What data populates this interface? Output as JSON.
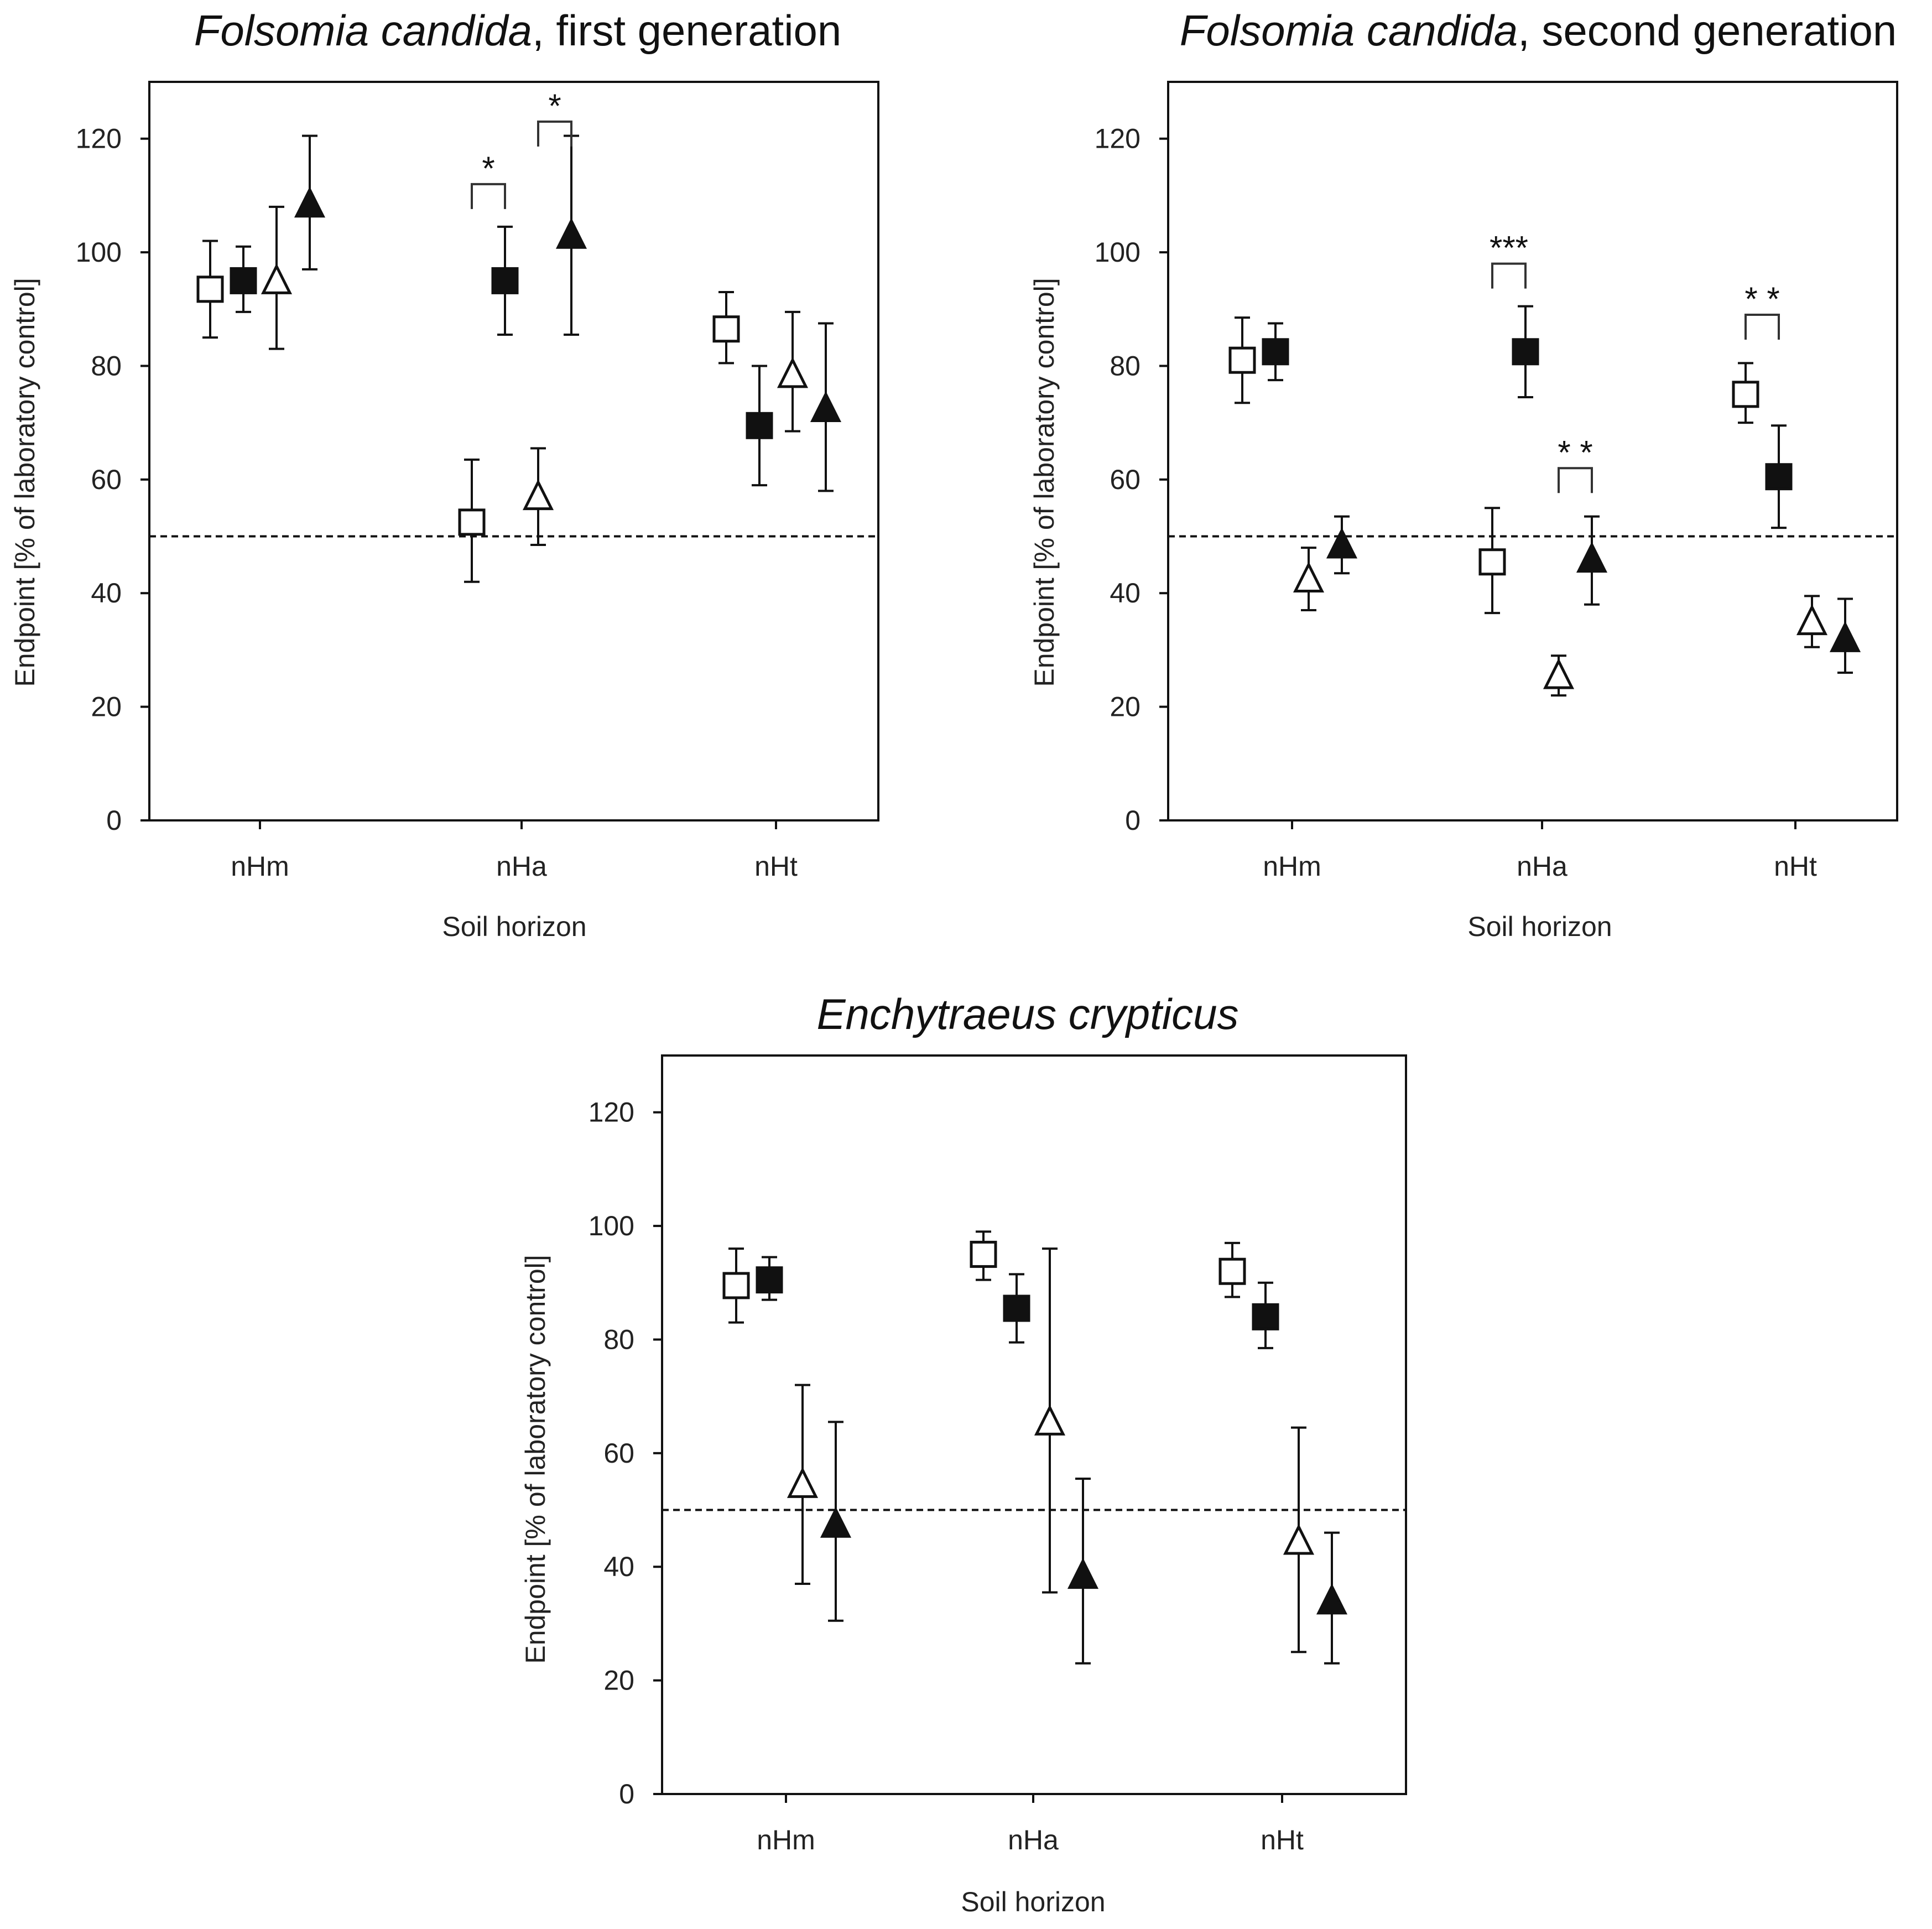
{
  "chart_data": [
    {
      "type": "scatter",
      "title_italic": "Folsomia candida",
      "title_rest": ", first generation",
      "xlabel": "Soil horizon",
      "ylabel": "Endpoint [% of laboratory control]",
      "categories": [
        "nHm",
        "nHa",
        "nHt"
      ],
      "ylim": [
        0,
        130
      ],
      "yticks": [
        "0",
        "20",
        "40",
        "60",
        "80",
        "100",
        "120"
      ],
      "reference_line": 50,
      "series": [
        {
          "marker": "open-square",
          "values": [
            93.5,
            52.5,
            86.5
          ],
          "err_low": [
            85,
            42,
            80.5
          ],
          "err_high": [
            102,
            63.5,
            93
          ]
        },
        {
          "marker": "filled-square",
          "values": [
            95,
            95,
            69.5
          ],
          "err_low": [
            89.5,
            85.5,
            59
          ],
          "err_high": [
            101,
            104.5,
            80
          ]
        },
        {
          "marker": "open-triangle",
          "values": [
            95,
            57,
            78.5
          ],
          "err_low": [
            83,
            48.5,
            68.5
          ],
          "err_high": [
            108,
            65.5,
            89.5
          ]
        },
        {
          "marker": "filled-triangle",
          "values": [
            108.5,
            103,
            72.5
          ],
          "err_low": [
            97,
            85.5,
            58
          ],
          "err_high": [
            120.5,
            120.5,
            87.5
          ]
        }
      ],
      "significance": [
        {
          "category": "nHa",
          "from": 0,
          "to": 1,
          "y": 112,
          "label": "*"
        },
        {
          "category": "nHa",
          "from": 2,
          "to": 3,
          "y": 123,
          "label": "*"
        }
      ]
    },
    {
      "type": "scatter",
      "title_italic": "Folsomia candida",
      "title_rest": ", second generation",
      "xlabel": "Soil horizon",
      "ylabel": "Endpoint [% of laboratory control]",
      "categories": [
        "nHm",
        "nHa",
        "nHt"
      ],
      "ylim": [
        0,
        130
      ],
      "yticks": [
        "0",
        "20",
        "40",
        "60",
        "80",
        "100",
        "120"
      ],
      "reference_line": 50,
      "series": [
        {
          "marker": "open-square",
          "values": [
            81,
            45.5,
            75
          ],
          "err_low": [
            73.5,
            36.5,
            70
          ],
          "err_high": [
            88.5,
            55,
            80.5
          ]
        },
        {
          "marker": "filled-square",
          "values": [
            82.5,
            82.5,
            60.5
          ],
          "err_low": [
            77.5,
            74.5,
            51.5
          ],
          "err_high": [
            87.5,
            90.5,
            69.5
          ]
        },
        {
          "marker": "open-triangle",
          "values": [
            42.5,
            25.5,
            35
          ],
          "err_low": [
            37,
            22,
            30.5
          ],
          "err_high": [
            48,
            29,
            39.5
          ]
        },
        {
          "marker": "filled-triangle",
          "values": [
            48.5,
            46,
            32
          ],
          "err_low": [
            43.5,
            38,
            26
          ],
          "err_high": [
            53.5,
            53.5,
            39
          ]
        }
      ],
      "significance": [
        {
          "category": "nHa",
          "from": 0,
          "to": 1,
          "y": 98,
          "label": "***"
        },
        {
          "category": "nHa",
          "from": 2,
          "to": 3,
          "y": 62,
          "label": "* *"
        },
        {
          "category": "nHt",
          "from": 0,
          "to": 1,
          "y": 89,
          "label": "* *"
        }
      ]
    },
    {
      "type": "scatter",
      "title_italic": "Enchytraeus   crypticus",
      "title_rest": "",
      "xlabel": "Soil horizon",
      "ylabel": "Endpoint [% of laboratory control]",
      "categories": [
        "nHm",
        "nHa",
        "nHt"
      ],
      "ylim": [
        0,
        130
      ],
      "yticks": [
        "0",
        "20",
        "40",
        "60",
        "80",
        "100",
        "120"
      ],
      "reference_line": 50,
      "series": [
        {
          "marker": "open-square",
          "values": [
            89.5,
            95,
            92
          ],
          "err_low": [
            83,
            90.5,
            87.5
          ],
          "err_high": [
            96,
            99,
            97
          ]
        },
        {
          "marker": "filled-square",
          "values": [
            90.5,
            85.5,
            84
          ],
          "err_low": [
            87,
            79.5,
            78.5
          ],
          "err_high": [
            94.5,
            91.5,
            90
          ]
        },
        {
          "marker": "open-triangle",
          "values": [
            54.5,
            65.5,
            44.5
          ],
          "err_low": [
            37,
            35.5,
            25
          ],
          "err_high": [
            72,
            96,
            64.5
          ]
        },
        {
          "marker": "filled-triangle",
          "values": [
            47.5,
            38.5,
            34
          ],
          "err_low": [
            30.5,
            23,
            23
          ],
          "err_high": [
            65.5,
            55.5,
            46
          ]
        }
      ],
      "significance": []
    }
  ]
}
